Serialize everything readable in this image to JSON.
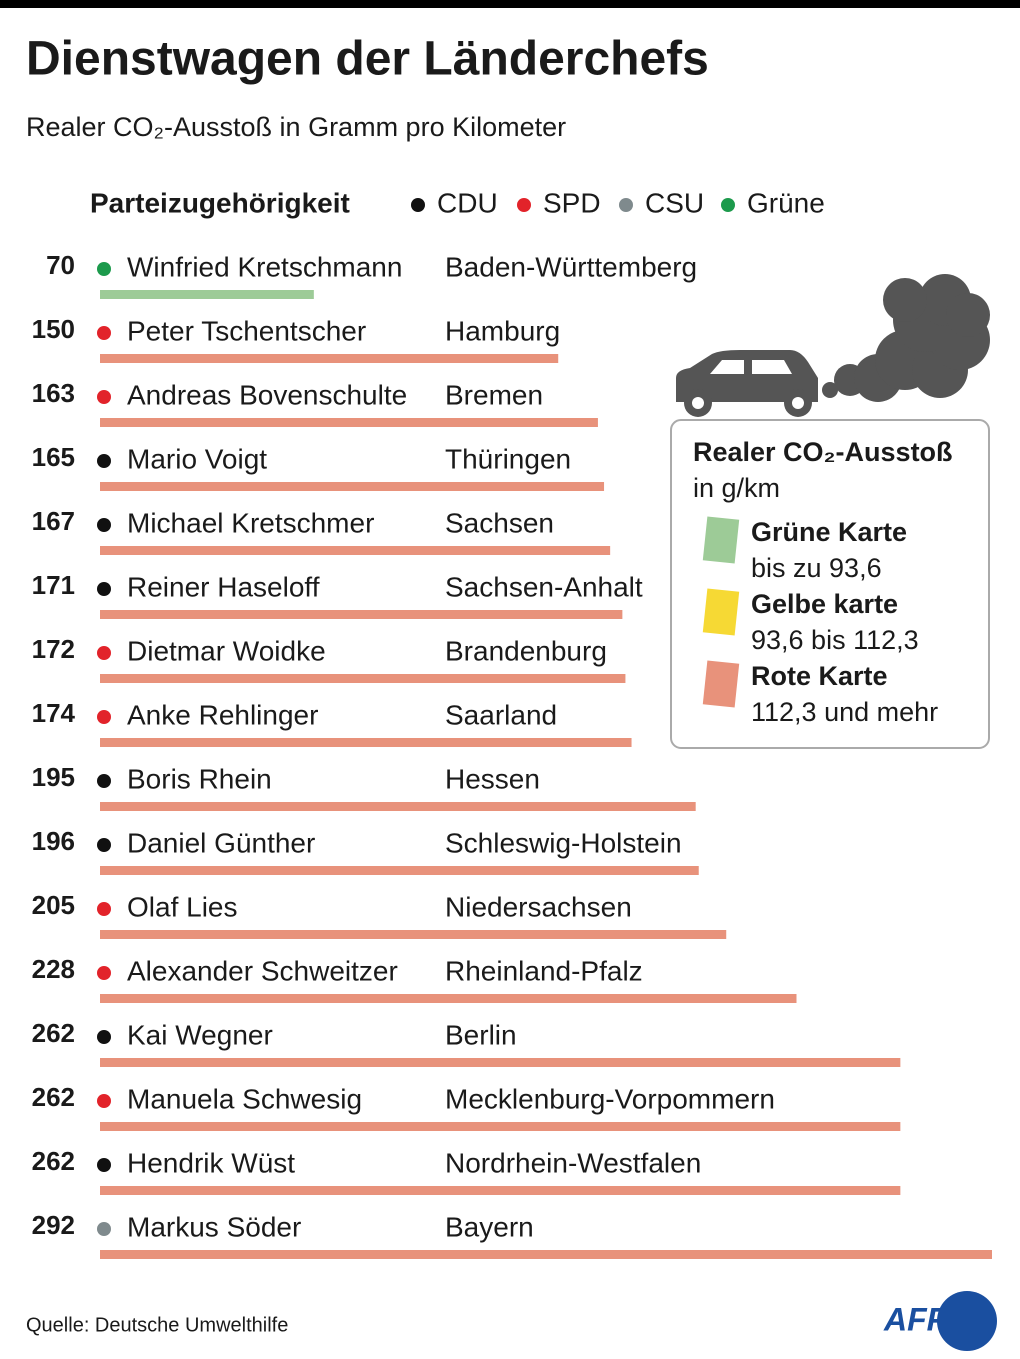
{
  "chart_data": {
    "type": "bar",
    "title": "Dienstwagen der Länderchefs",
    "subtitle": "Realer CO₂-Ausstoß in Gramm pro Kilometer",
    "legend_title": "Parteizugehörigkeit",
    "parties": [
      {
        "name": "CDU",
        "color": "#111111"
      },
      {
        "name": "SPD",
        "color": "#e2232a"
      },
      {
        "name": "CSU",
        "color": "#7f8a8d"
      },
      {
        "name": "Grüne",
        "color": "#1c9a4c"
      }
    ],
    "categories": [
      "Winfried Kretschmann",
      "Peter Tschentscher",
      "Andreas Bovenschulte",
      "Mario Voigt",
      "Michael Kretschmer",
      "Reiner Haseloff",
      "Dietmar Woidke",
      "Anke Rehlinger",
      "Boris Rhein",
      "Daniel Günther",
      "Olaf Lies",
      "Alexander Schweitzer",
      "Kai Wegner",
      "Manuela Schwesig",
      "Hendrik Wüst",
      "Markus Söder"
    ],
    "states": [
      "Baden-Württemberg",
      "Hamburg",
      "Bremen",
      "Thüringen",
      "Sachsen",
      "Sachsen-Anhalt",
      "Brandenburg",
      "Saarland",
      "Hessen",
      "Schleswig-Holstein",
      "Niedersachsen",
      "Rheinland-Pfalz",
      "Berlin",
      "Mecklenburg-Vorpommern",
      "Nordrhein-Westfalen",
      "Bayern"
    ],
    "values": [
      70,
      150,
      163,
      165,
      167,
      171,
      172,
      174,
      195,
      196,
      205,
      228,
      262,
      262,
      262,
      292
    ],
    "dot_colors": [
      "#1c9a4c",
      "#e2232a",
      "#e2232a",
      "#111111",
      "#111111",
      "#111111",
      "#e2232a",
      "#e2232a",
      "#111111",
      "#111111",
      "#e2232a",
      "#e2232a",
      "#111111",
      "#e2232a",
      "#111111",
      "#7f8a8d"
    ],
    "bar_colors": [
      "#9dcb97",
      "#e8927b",
      "#e8927b",
      "#e8927b",
      "#e8927b",
      "#e8927b",
      "#e8927b",
      "#e8927b",
      "#e8927b",
      "#e8927b",
      "#e8927b",
      "#e8927b",
      "#e8927b",
      "#e8927b",
      "#e8927b",
      "#e8927b"
    ],
    "xlim": [
      0,
      292
    ],
    "card": {
      "title": "Realer CO₂-Ausstoß",
      "unit": "in g/km",
      "items": [
        {
          "name": "Grüne Karte",
          "range": "bis zu 93,6",
          "color": "#9dcb97"
        },
        {
          "name": "Gelbe karte",
          "range": "93,6 bis 112,3",
          "color": "#f6d934"
        },
        {
          "name": "Rote Karte",
          "range": "112,3 und mehr",
          "color": "#e8927b"
        }
      ]
    },
    "source": "Quelle: Deutsche Umwelthilfe",
    "logo": "AFP"
  }
}
